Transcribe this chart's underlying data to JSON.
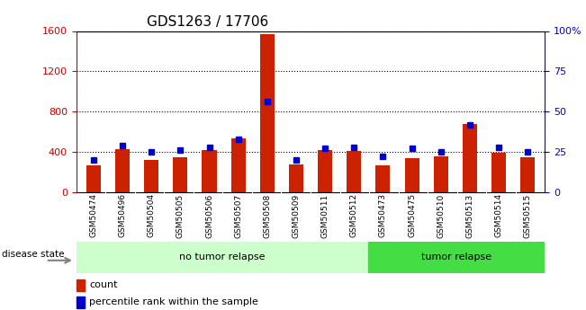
{
  "title": "GDS1263 / 17706",
  "samples": [
    "GSM50474",
    "GSM50496",
    "GSM50504",
    "GSM50505",
    "GSM50506",
    "GSM50507",
    "GSM50508",
    "GSM50509",
    "GSM50511",
    "GSM50512",
    "GSM50473",
    "GSM50475",
    "GSM50510",
    "GSM50513",
    "GSM50514",
    "GSM50515"
  ],
  "counts": [
    270,
    430,
    320,
    350,
    420,
    530,
    1570,
    280,
    420,
    410,
    270,
    340,
    360,
    680,
    390,
    350
  ],
  "percentiles": [
    20,
    29,
    25,
    26,
    28,
    33,
    56,
    20,
    27,
    28,
    22,
    27,
    25,
    42,
    28,
    25
  ],
  "no_tumor_count": 10,
  "tumor_count": 6,
  "left_axis_color": "#cc0000",
  "right_axis_color": "#0000cc",
  "bar_color": "#cc2200",
  "dot_color": "#0000cc",
  "left_ylim": [
    0,
    1600
  ],
  "right_ylim": [
    0,
    100
  ],
  "left_yticks": [
    0,
    400,
    800,
    1200,
    1600
  ],
  "right_yticks": [
    0,
    25,
    50,
    75,
    100
  ],
  "right_yticklabels": [
    "0",
    "25",
    "50",
    "75",
    "100%"
  ],
  "no_tumor_label": "no tumor relapse",
  "tumor_label": "tumor relapse",
  "disease_state_label": "disease state",
  "legend_count": "count",
  "legend_percentile": "percentile rank within the sample",
  "no_tumor_bg": "#ccffcc",
  "tumor_bg": "#44dd44"
}
